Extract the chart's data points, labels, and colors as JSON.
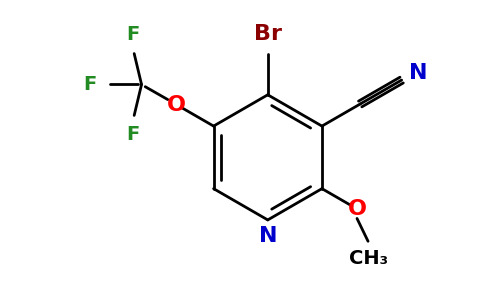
{
  "background_color": "#ffffff",
  "bond_color": "#000000",
  "br_color": "#8b0000",
  "n_color": "#0000cd",
  "o_color": "#ff0000",
  "f_color": "#228b22",
  "figsize": [
    4.84,
    3.0
  ],
  "dpi": 100,
  "xlim": [
    -2.8,
    2.8
  ],
  "ylim": [
    -1.8,
    2.2
  ]
}
